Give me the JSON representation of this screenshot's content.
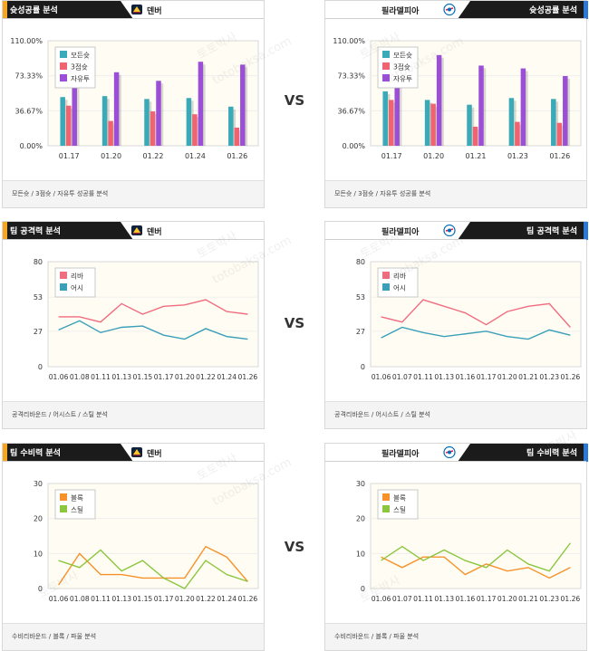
{
  "colors": {
    "bg_accent": "#f5a623",
    "header_black": "#1b1b1b",
    "accent_blue": "#2b78d6",
    "plot_bg": "#fffdf3",
    "bar_teal": "#3aa9b8",
    "bar_red": "#f06471",
    "bar_purple": "#9a4fd6",
    "line_pink": "#f06c80",
    "line_blue": "#3a9fb8",
    "line_orange": "#f5922c",
    "line_green": "#8cc63f"
  },
  "vs_label": "VS",
  "watermarks": [
    "토토박사",
    "totobaksa.com"
  ],
  "panels": [
    {
      "title": "슛성공률 분석",
      "team": "덴버",
      "logo": "nuggets-logo-icon",
      "side": "left",
      "footer": "모든슛 / 3점슛 / 자유투 성공률 분석",
      "chart_data": {
        "type": "bar",
        "ylim": [
          0,
          110
        ],
        "yticks": [
          "0.00%",
          "36.67%",
          "73.33%",
          "110.00%"
        ],
        "ytick_values": [
          0,
          36.67,
          73.33,
          110
        ],
        "categories": [
          "01.17",
          "01.20",
          "01.22",
          "01.24",
          "01.26"
        ],
        "series": [
          {
            "name": "모든슛",
            "color": "#3aa9b8",
            "values": [
              51,
              52,
              49,
              50,
              41
            ]
          },
          {
            "name": "3점슛",
            "color": "#f06471",
            "values": [
              42,
              26,
              36,
              33,
              19
            ]
          },
          {
            "name": "자유투",
            "color": "#9a4fd6",
            "values": [
              66,
              77,
              68,
              88,
              85
            ]
          }
        ]
      }
    },
    {
      "title": "슛성공률 분석",
      "team": "필라델피아",
      "logo": "76ers-logo-icon",
      "side": "right",
      "footer": "모든슛 / 3점슛 / 자유투 성공률 분석",
      "chart_data": {
        "type": "bar",
        "ylim": [
          0,
          110
        ],
        "yticks": [
          "0.00%",
          "36.67%",
          "73.33%",
          "110.00%"
        ],
        "ytick_values": [
          0,
          36.67,
          73.33,
          110
        ],
        "categories": [
          "01.17",
          "01.20",
          "01.21",
          "01.23",
          "01.26"
        ],
        "series": [
          {
            "name": "모든슛",
            "color": "#3aa9b8",
            "values": [
              57,
              48,
              43,
              50,
              49
            ]
          },
          {
            "name": "3점슛",
            "color": "#f06471",
            "values": [
              48,
              44,
              20,
              25,
              24
            ]
          },
          {
            "name": "자유투",
            "color": "#9a4fd6",
            "values": [
              87,
              95,
              84,
              81,
              73
            ]
          }
        ]
      }
    },
    {
      "title": "팀 공격력 분석",
      "team": "덴버",
      "logo": "nuggets-logo-icon",
      "side": "left",
      "footer": "공격리바운드 / 어시스트 / 스틸 분석",
      "chart_data": {
        "type": "line",
        "ylim": [
          0,
          80
        ],
        "yticks": [
          "0",
          "27",
          "53",
          "80"
        ],
        "ytick_values": [
          0,
          27,
          53,
          80
        ],
        "x": [
          "01.06",
          "01.08",
          "01.11",
          "01.13",
          "01.15",
          "01.17",
          "01.20",
          "01.22",
          "01.24",
          "01.26"
        ],
        "series": [
          {
            "name": "리바",
            "color": "#f06c80",
            "values": [
              38,
              38,
              34,
              48,
              40,
              46,
              47,
              51,
              42,
              40
            ]
          },
          {
            "name": "어시",
            "color": "#3a9fb8",
            "values": [
              28,
              35,
              26,
              30,
              31,
              24,
              21,
              29,
              23,
              21
            ]
          }
        ]
      }
    },
    {
      "title": "팀 공격력 분석",
      "team": "필라델피아",
      "logo": "76ers-logo-icon",
      "side": "right",
      "footer": "공격리바운드 / 어시스트 / 스틸 분석",
      "chart_data": {
        "type": "line",
        "ylim": [
          0,
          80
        ],
        "yticks": [
          "0",
          "27",
          "53",
          "80"
        ],
        "ytick_values": [
          0,
          27,
          53,
          80
        ],
        "x": [
          "01.06",
          "01.07",
          "01.11",
          "01.13",
          "01.16",
          "01.17",
          "01.20",
          "01.21",
          "01.23",
          "01.26"
        ],
        "series": [
          {
            "name": "리바",
            "color": "#f06c80",
            "values": [
              38,
              34,
              51,
              46,
              41,
              32,
              42,
              46,
              48,
              30
            ]
          },
          {
            "name": "어시",
            "color": "#3a9fb8",
            "values": [
              22,
              30,
              26,
              23,
              25,
              27,
              23,
              21,
              28,
              24
            ]
          }
        ]
      }
    },
    {
      "title": "팀 수비력 분석",
      "team": "덴버",
      "logo": "nuggets-logo-icon",
      "side": "left",
      "footer": "수비리바운드 / 블록 / 파울 분석",
      "chart_data": {
        "type": "line",
        "ylim": [
          0,
          30
        ],
        "yticks": [
          "0",
          "10",
          "20",
          "30"
        ],
        "ytick_values": [
          0,
          10,
          20,
          30
        ],
        "x": [
          "01.06",
          "01.08",
          "01.11",
          "01.13",
          "01.15",
          "01.17",
          "01.20",
          "01.22",
          "01.24",
          "01.26"
        ],
        "series": [
          {
            "name": "블록",
            "color": "#f5922c",
            "values": [
              1,
              10,
              4,
              4,
              3,
              3,
              3,
              12,
              9,
              2
            ]
          },
          {
            "name": "스틸",
            "color": "#8cc63f",
            "values": [
              8,
              6,
              11,
              5,
              8,
              3,
              0,
              8,
              4,
              2
            ]
          }
        ]
      }
    },
    {
      "title": "팀 수비력 분석",
      "team": "필라델피아",
      "logo": "76ers-logo-icon",
      "side": "right",
      "footer": "수비리바운드 / 블록 / 파울 분석",
      "chart_data": {
        "type": "line",
        "ylim": [
          0,
          30
        ],
        "yticks": [
          "0",
          "10",
          "20",
          "30"
        ],
        "ytick_values": [
          0,
          10,
          20,
          30
        ],
        "x": [
          "01.06",
          "01.07",
          "01.11",
          "01.13",
          "01.16",
          "01.17",
          "01.20",
          "01.21",
          "01.23",
          "01.26"
        ],
        "series": [
          {
            "name": "블록",
            "color": "#f5922c",
            "values": [
              9,
              6,
              9,
              9,
              4,
              7,
              5,
              6,
              3,
              6
            ]
          },
          {
            "name": "스틸",
            "color": "#8cc63f",
            "values": [
              8,
              12,
              8,
              11,
              8,
              6,
              11,
              7,
              5,
              13
            ]
          }
        ]
      }
    }
  ]
}
